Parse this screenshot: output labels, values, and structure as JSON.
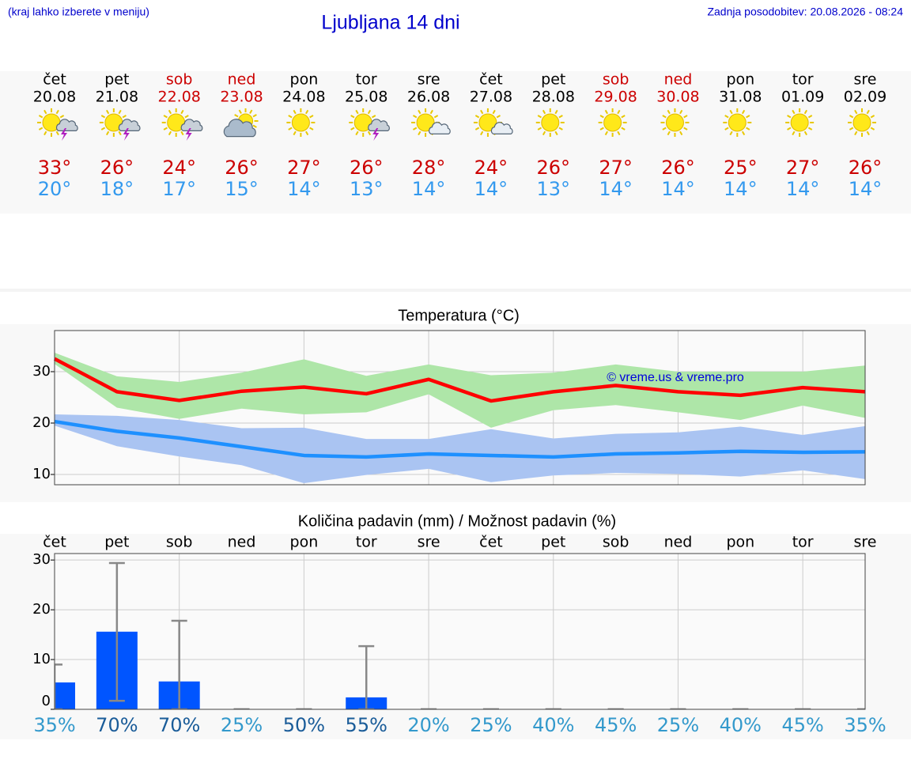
{
  "header": {
    "left": "(kraj lahko izberete v meniju)",
    "title": "Ljubljana 14 dni",
    "right": "Zadnja posodobitev: 20.08.2026 - 08:24"
  },
  "forecast": {
    "days": [
      {
        "weekday": "čet",
        "date": "20.08",
        "high": "33°",
        "low": "20°",
        "weekend": false,
        "icon": "sun-storm"
      },
      {
        "weekday": "pet",
        "date": "21.08",
        "high": "26°",
        "low": "18°",
        "weekend": false,
        "icon": "sun-storm"
      },
      {
        "weekday": "sob",
        "date": "22.08",
        "high": "24°",
        "low": "17°",
        "weekend": true,
        "icon": "sun-storm"
      },
      {
        "weekday": "ned",
        "date": "23.08",
        "high": "26°",
        "low": "15°",
        "weekend": true,
        "icon": "cloud-sun"
      },
      {
        "weekday": "pon",
        "date": "24.08",
        "high": "27°",
        "low": "14°",
        "weekend": false,
        "icon": "sun"
      },
      {
        "weekday": "tor",
        "date": "25.08",
        "high": "26°",
        "low": "13°",
        "weekend": false,
        "icon": "sun-storm"
      },
      {
        "weekday": "sre",
        "date": "26.08",
        "high": "28°",
        "low": "14°",
        "weekend": false,
        "icon": "sun-cloud"
      },
      {
        "weekday": "čet",
        "date": "27.08",
        "high": "24°",
        "low": "14°",
        "weekend": false,
        "icon": "sun-cloud"
      },
      {
        "weekday": "pet",
        "date": "28.08",
        "high": "26°",
        "low": "13°",
        "weekend": false,
        "icon": "sun"
      },
      {
        "weekday": "sob",
        "date": "29.08",
        "high": "27°",
        "low": "14°",
        "weekend": true,
        "icon": "sun"
      },
      {
        "weekday": "ned",
        "date": "30.08",
        "high": "26°",
        "low": "14°",
        "weekend": true,
        "icon": "sun"
      },
      {
        "weekday": "pon",
        "date": "31.08",
        "high": "25°",
        "low": "14°",
        "weekend": false,
        "icon": "sun"
      },
      {
        "weekday": "tor",
        "date": "01.09",
        "high": "27°",
        "low": "14°",
        "weekend": false,
        "icon": "sun"
      },
      {
        "weekday": "sre",
        "date": "02.09",
        "high": "26°",
        "low": "14°",
        "weekend": false,
        "icon": "sun"
      }
    ]
  },
  "chart_data": [
    {
      "type": "line",
      "title": "Temperatura (°C)",
      "annotation": "© vreme.us & vreme.pro",
      "ylim": [
        8,
        38
      ],
      "yticks": [
        10,
        20,
        30
      ],
      "grid": true,
      "series": [
        {
          "color": "#ff0000",
          "band_color": "#aee6a8",
          "values": [
            32.5,
            26.1,
            24.4,
            26.2,
            27.0,
            25.7,
            28.5,
            24.3,
            26.1,
            27.3,
            26.1,
            25.4,
            26.9,
            26.1
          ],
          "band_high": [
            33.7,
            29.1,
            28.0,
            29.8,
            32.4,
            29.2,
            31.4,
            29.3,
            29.8,
            31.4,
            30.0,
            30.0,
            30.0,
            31.2
          ],
          "band_low": [
            31.5,
            23.0,
            20.8,
            22.8,
            21.7,
            22.1,
            25.6,
            19.1,
            22.5,
            23.5,
            22.1,
            20.6,
            23.4,
            21.0
          ]
        },
        {
          "color": "#1e90ff",
          "band_color": "#aac4f2",
          "values": [
            20.3,
            18.4,
            17.1,
            15.4,
            13.7,
            13.4,
            14.0,
            13.7,
            13.4,
            14.0,
            14.2,
            14.5,
            14.3,
            14.4
          ],
          "band_high": [
            21.7,
            21.4,
            20.6,
            19.0,
            19.1,
            16.9,
            16.9,
            18.8,
            17.0,
            17.9,
            18.2,
            19.3,
            17.7,
            19.4
          ],
          "band_low": [
            19.5,
            15.5,
            13.5,
            11.8,
            8.3,
            9.9,
            11.1,
            8.5,
            9.8,
            10.3,
            10.1,
            9.6,
            10.8,
            9.1
          ]
        }
      ]
    },
    {
      "type": "bar",
      "title": "Količina padavin (mm) / Možnost padavin (%)",
      "color": "#0055ff",
      "categories": [
        "čet",
        "pet",
        "sob",
        "ned",
        "pon",
        "tor",
        "sre",
        "čet",
        "pet",
        "sob",
        "ned",
        "pon",
        "tor",
        "sre"
      ],
      "values": [
        5.4,
        15.6,
        5.6,
        0,
        0,
        2.4,
        0,
        0,
        0,
        0,
        0,
        0,
        0,
        0
      ],
      "error_low": [
        0,
        1.7,
        0,
        0,
        0,
        0,
        0,
        0,
        0,
        0,
        0,
        0,
        0,
        0
      ],
      "error_high": [
        9.0,
        29.4,
        17.8,
        0,
        0,
        12.7,
        0,
        0,
        0,
        0,
        0,
        0,
        0,
        0
      ],
      "ylim": [
        0,
        31.3
      ],
      "yticks": [
        0,
        10,
        20,
        30
      ],
      "grid": true,
      "probability": {
        "values": [
          35,
          70,
          70,
          25,
          50,
          55,
          20,
          25,
          40,
          45,
          25,
          40,
          45,
          35
        ],
        "value_labels": [
          "35%",
          "70%",
          "70%",
          "25%",
          "50%",
          "55%",
          "20%",
          "25%",
          "40%",
          "45%",
          "25%",
          "40%",
          "45%",
          "35%"
        ],
        "colors": [
          "#3399cc",
          "#1a5c99",
          "#1a5c99",
          "#3399cc",
          "#1a5c99",
          "#1a5c99",
          "#3399cc",
          "#3399cc",
          "#3399cc",
          "#3399cc",
          "#3399cc",
          "#3399cc",
          "#3399cc",
          "#3399cc"
        ]
      }
    }
  ]
}
